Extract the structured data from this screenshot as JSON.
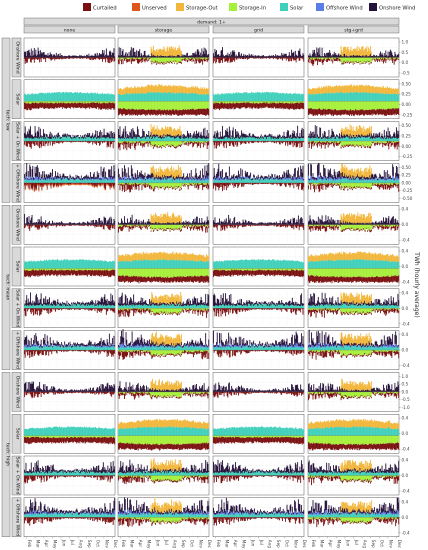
{
  "chart_data": {
    "type": "area",
    "top_strip": "demand: 1+",
    "columns": [
      "none",
      "storage",
      "grid",
      "stg+grd"
    ],
    "outer_rows": [
      "tech: low",
      "tech: mean",
      "tech: high"
    ],
    "inner_rows": [
      "Onshore Wind",
      "Solar",
      "Solar + On.Wind",
      "+ Offshore Wind"
    ],
    "ylabel": "TWh (hourly average)",
    "x_ticks": [
      "Feb",
      "Mar",
      "Apr",
      "May",
      "Jun",
      "Jul",
      "Aug",
      "Sep",
      "Oct",
      "Nov",
      "Dec"
    ],
    "legend_position": "top",
    "series": [
      {
        "name": "Curtailed",
        "color": "#7b1010"
      },
      {
        "name": "Unserved",
        "color": "#e0561a"
      },
      {
        "name": "Storage-Out",
        "color": "#f2b63a"
      },
      {
        "name": "Storage-In",
        "color": "#a6f03a"
      },
      {
        "name": "Solar",
        "color": "#3fd0bb"
      },
      {
        "name": "Offshore Wind",
        "color": "#5d7bea"
      },
      {
        "name": "Onshore Wind",
        "color": "#26123a"
      }
    ],
    "y_ticks_by_row": [
      [
        "1.0",
        "0.5",
        "0.0",
        "-0.5"
      ],
      [
        "0.50",
        "0.25",
        "0.00",
        "-0.25"
      ],
      [
        "0.50",
        "0.25",
        "0.00",
        "-0.25"
      ],
      [
        "0.50",
        "0.25",
        "0.00",
        "-0.25",
        "-0.50"
      ],
      [
        "0.4",
        "0.0",
        "-0.4"
      ],
      [
        "0.4",
        "0.0",
        "-0.4"
      ],
      [
        "0.4",
        "0.0",
        "-0.4"
      ],
      [
        "0.4",
        "0.0",
        "-0.4"
      ],
      [
        "1.0",
        "0.5",
        "0.0",
        "-0.5",
        "-1.0"
      ],
      [
        "0.4",
        "0.0",
        "-0.4"
      ],
      [
        "0.4",
        "0.0",
        "-0.4"
      ],
      [
        "0.4",
        "0.0",
        "-0.4"
      ]
    ]
  }
}
